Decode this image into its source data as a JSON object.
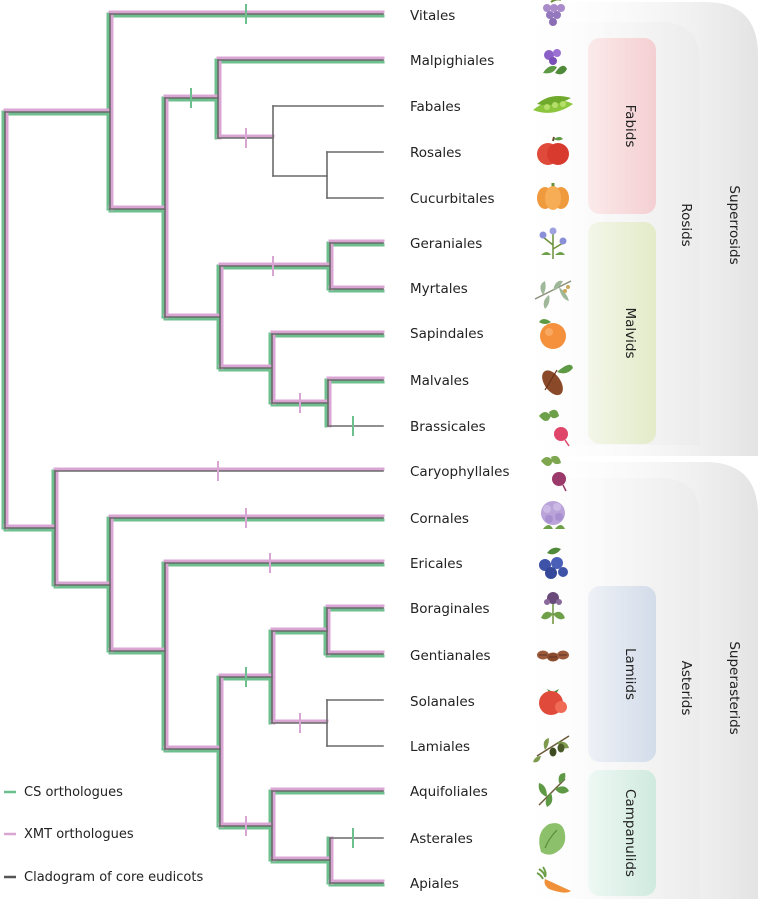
{
  "taxa": [
    "Vitales",
    "Malpighiales",
    "Fabales",
    "Rosales",
    "Cucurbitales",
    "Geraniales",
    "Myrtales",
    "Sapindales",
    "Malvales",
    "Brassicales",
    "Caryophyllales",
    "Cornales",
    "Ericales",
    "Boraginales",
    "Gentianales",
    "Solanales",
    "Lamiales",
    "Aquifoliales",
    "Asterales",
    "Apiales"
  ],
  "groups": {
    "fabids": "Fabids",
    "malvids": "Malvids",
    "rosids": "Rosids",
    "superrosids": "Superrosids",
    "lamiids": "Lamiids",
    "campanulids": "Campanulids",
    "asterids": "Asterids",
    "superasterids": "Superasterids"
  },
  "legend": {
    "cs": "CS orthologues",
    "xmt": "XMT orthologues",
    "clado": "Cladogram of core eudicots"
  },
  "colors": {
    "cs": "#6dbf8e",
    "xmt": "#d9a6d4",
    "clado": "#7a7a7a",
    "fabids": "#f6d7d9",
    "malvids": "#eaf0d6",
    "lamiids": "#d9e1ee",
    "campanulids": "#d6efe7",
    "rosids": "#eeeeee",
    "superrosids": "#e6e6e6"
  },
  "icons": [
    "grape-icon",
    "violet-flower-icon",
    "pea-pod-icon",
    "apple-icon",
    "pumpkin-icon",
    "geranium-icon",
    "eucalyptus-icon",
    "orange-icon",
    "cacao-icon",
    "radish-icon",
    "beet-icon",
    "hydrangea-icon",
    "blueberry-icon",
    "borage-icon",
    "coffee-bean-icon",
    "tomato-icon",
    "olive-icon",
    "holly-icon",
    "lettuce-icon",
    "carrot-icon"
  ]
}
